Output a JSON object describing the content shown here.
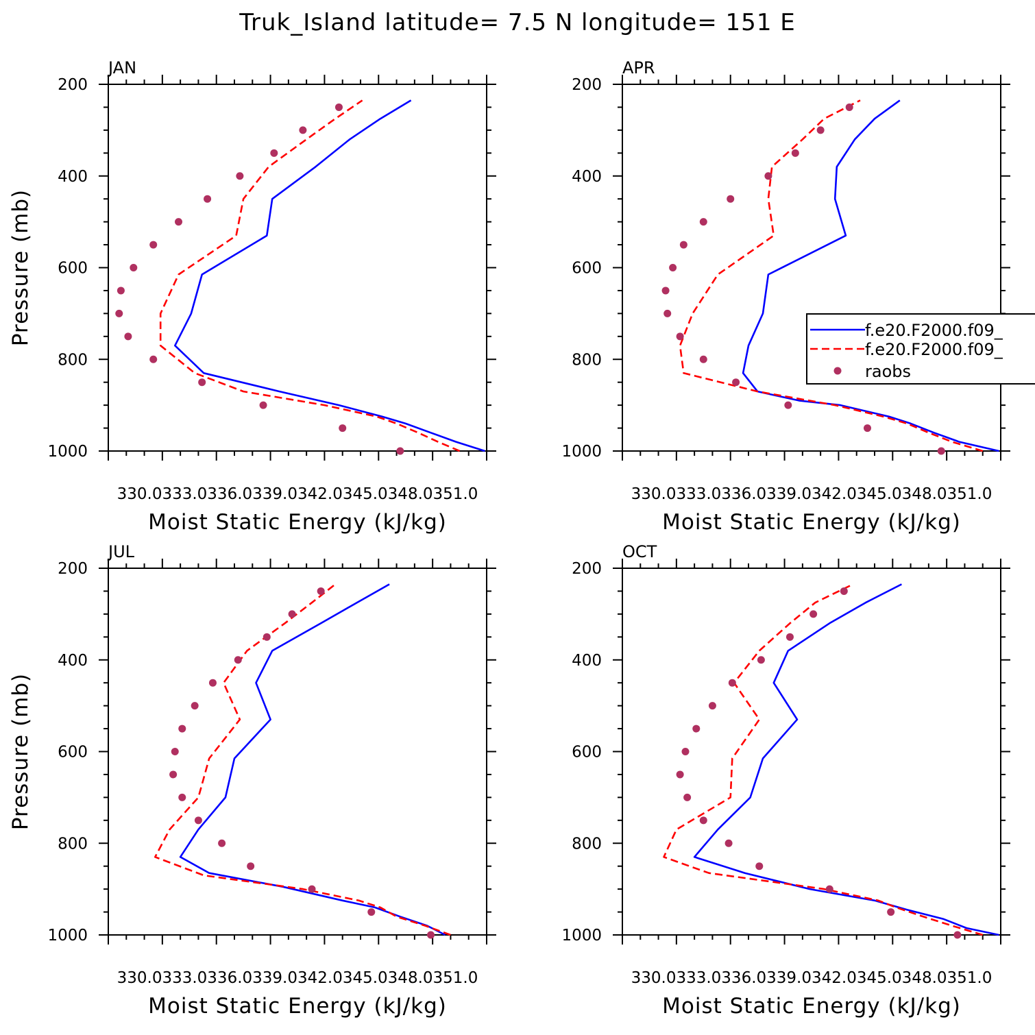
{
  "figure_title": "Truk_Island  latitude= 7.5 N longitude= 151 E",
  "colors": {
    "model_a": "#0000ff",
    "model_b": "#ff0000",
    "raobs": "#b03060"
  },
  "chart_data": [
    {
      "type": "line",
      "panel": "JAN",
      "xlabel": "Moist Static Energy (kJ/kg)",
      "ylabel": "Pressure (mb)",
      "xlim": [
        330,
        351
      ],
      "ylim": [
        1000,
        200
      ],
      "x_tick_labels": [
        "330.0",
        "333.0",
        "336.0",
        "339.0",
        "342.0",
        "345.0",
        "348.0",
        "351.0"
      ],
      "x_tick_label_text": "330.0333.0336.0339.0342.0345.0348.0351.0",
      "y_ticks": [
        200,
        400,
        600,
        800,
        1000
      ],
      "series": [
        {
          "name": "f.e20.F2000.f09_",
          "style": "solid",
          "pressure": [
            1000,
            980,
            960,
            940,
            925,
            900,
            870,
            830,
            770,
            700,
            615,
            530,
            450,
            380,
            320,
            275,
            235
          ],
          "values": [
            350.9,
            349.3,
            347.9,
            346.5,
            345.2,
            342.8,
            339.5,
            335.3,
            333.7,
            334.6,
            335.2,
            338.8,
            339.1,
            341.5,
            343.4,
            345.1,
            346.8
          ]
        },
        {
          "name": "f.e20.F2000.f09_",
          "style": "dashed",
          "pressure": [
            1000,
            980,
            960,
            940,
            925,
            900,
            870,
            830,
            770,
            700,
            615,
            530,
            450,
            380,
            320,
            275,
            235
          ],
          "values": [
            349.5,
            348.3,
            347.2,
            346.0,
            344.9,
            342.0,
            337.5,
            334.8,
            332.9,
            332.9,
            333.9,
            337.1,
            337.5,
            338.9,
            341.0,
            342.6,
            344.1
          ]
        },
        {
          "name": "raobs",
          "style": "markers",
          "pressure": [
            1000,
            950,
            900,
            850,
            800,
            750,
            700,
            650,
            600,
            550,
            500,
            450,
            400,
            350,
            300,
            250
          ],
          "values": [
            346.2,
            343.0,
            338.6,
            335.2,
            332.5,
            331.1,
            330.6,
            330.7,
            331.4,
            332.5,
            333.9,
            335.5,
            337.3,
            339.2,
            340.8,
            342.8
          ]
        }
      ]
    },
    {
      "type": "line",
      "panel": "APR",
      "xlabel": "Moist Static Energy (kJ/kg)",
      "ylabel": "",
      "xlim": [
        330,
        351
      ],
      "ylim": [
        1000,
        200
      ],
      "x_tick_labels": [
        "330.0",
        "333.0",
        "336.0",
        "339.0",
        "342.0",
        "345.0",
        "348.0",
        "351.0"
      ],
      "x_tick_label_text": "330.0333.0336.0339.0342.0345.0348.0351.0",
      "y_ticks": [
        200,
        400,
        600,
        800,
        1000
      ],
      "series": [
        {
          "name": "f.e20.F2000.f09_",
          "style": "solid",
          "pressure": [
            1000,
            980,
            960,
            940,
            925,
            900,
            890,
            870,
            830,
            770,
            700,
            615,
            530,
            450,
            380,
            320,
            275,
            235
          ],
          "values": [
            350.9,
            348.7,
            347.3,
            346.0,
            344.8,
            342.1,
            339.8,
            337.5,
            336.7,
            337.0,
            337.8,
            338.1,
            342.4,
            341.8,
            341.9,
            342.9,
            344.0,
            345.4
          ]
        },
        {
          "name": "f.e20.F2000.f09_",
          "style": "dashed",
          "pressure": [
            1000,
            980,
            960,
            940,
            925,
            900,
            870,
            830,
            770,
            700,
            615,
            530,
            450,
            380,
            320,
            275,
            235
          ],
          "values": [
            350.0,
            348.3,
            347.0,
            345.8,
            344.5,
            341.8,
            337.5,
            333.4,
            333.2,
            333.9,
            335.3,
            338.4,
            338.1,
            338.3,
            340.0,
            341.2,
            343.2
          ]
        },
        {
          "name": "raobs",
          "style": "markers",
          "pressure": [
            1000,
            950,
            900,
            850,
            800,
            750,
            700,
            650,
            600,
            550,
            500,
            450,
            400,
            350,
            300,
            250
          ],
          "values": [
            347.7,
            343.6,
            339.2,
            336.3,
            334.5,
            333.2,
            332.5,
            332.4,
            332.8,
            333.4,
            334.5,
            336.0,
            338.1,
            339.6,
            341.0,
            342.6
          ]
        }
      ]
    },
    {
      "type": "line",
      "panel": "JUL",
      "xlabel": "Moist Static Energy (kJ/kg)",
      "ylabel": "Pressure (mb)",
      "xlim": [
        330,
        351
      ],
      "ylim": [
        1000,
        200
      ],
      "x_tick_labels": [
        "330.0",
        "333.0",
        "336.0",
        "339.0",
        "342.0",
        "345.0",
        "348.0",
        "351.0"
      ],
      "x_tick_label_text": "330.0333.0336.0339.0342.0345.0348.0351.0",
      "y_ticks": [
        200,
        400,
        600,
        800,
        1000
      ],
      "series": [
        {
          "name": "f.e20.F2000.f09_",
          "style": "solid",
          "pressure": [
            1000,
            980,
            960,
            940,
            925,
            895,
            865,
            830,
            770,
            700,
            615,
            530,
            450,
            380,
            320,
            275,
            235
          ],
          "values": [
            348.7,
            347.7,
            346.2,
            344.8,
            343.0,
            339.7,
            335.6,
            334.0,
            335.0,
            336.5,
            337.0,
            339.0,
            338.2,
            339.1,
            341.8,
            343.8,
            345.6
          ]
        },
        {
          "name": "f.e20.F2000.f09_",
          "style": "dashed",
          "pressure": [
            1000,
            980,
            960,
            940,
            925,
            900,
            870,
            830,
            770,
            700,
            615,
            530,
            450,
            380,
            320,
            275,
            235
          ],
          "values": [
            349.0,
            347.6,
            346.0,
            345.1,
            343.9,
            340.8,
            335.3,
            332.6,
            333.4,
            335.0,
            335.6,
            337.3,
            336.4,
            337.7,
            339.8,
            341.3,
            342.6
          ]
        },
        {
          "name": "raobs",
          "style": "markers",
          "pressure": [
            1000,
            950,
            900,
            850,
            800,
            750,
            700,
            650,
            600,
            550,
            500,
            450,
            400,
            350,
            300,
            250
          ],
          "values": [
            347.9,
            344.6,
            341.3,
            337.9,
            336.3,
            335.0,
            334.1,
            333.6,
            333.7,
            334.1,
            334.8,
            335.8,
            337.2,
            338.8,
            340.2,
            341.8
          ]
        }
      ]
    },
    {
      "type": "line",
      "panel": "OCT",
      "xlabel": "Moist Static Energy (kJ/kg)",
      "ylabel": "",
      "xlim": [
        330,
        351
      ],
      "ylim": [
        1000,
        200
      ],
      "x_tick_labels": [
        "330.0",
        "333.0",
        "336.0",
        "339.0",
        "342.0",
        "345.0",
        "348.0",
        "351.0"
      ],
      "x_tick_label_text": "330.0333.0336.0339.0342.0345.0348.0351.0",
      "y_ticks": [
        200,
        400,
        600,
        800,
        1000
      ],
      "series": [
        {
          "name": "f.e20.F2000.f09_",
          "style": "solid",
          "pressure": [
            1000,
            985,
            965,
            945,
            925,
            900,
            865,
            830,
            770,
            700,
            615,
            530,
            450,
            380,
            320,
            275,
            235
          ],
          "values": [
            350.9,
            349.1,
            347.8,
            345.8,
            344.0,
            340.4,
            336.8,
            334.0,
            335.3,
            337.1,
            337.8,
            339.7,
            338.4,
            339.2,
            341.5,
            343.5,
            345.5
          ]
        },
        {
          "name": "f.e20.F2000.f09_",
          "style": "dashed",
          "pressure": [
            1000,
            980,
            960,
            940,
            925,
            900,
            865,
            830,
            770,
            700,
            615,
            530,
            450,
            380,
            320,
            275,
            235
          ],
          "values": [
            350.0,
            348.3,
            346.7,
            345.2,
            344.2,
            341.2,
            334.8,
            332.3,
            333.0,
            336.0,
            336.1,
            337.6,
            336.2,
            337.6,
            339.3,
            340.7,
            342.8
          ]
        },
        {
          "name": "raobs",
          "style": "markers",
          "pressure": [
            1000,
            950,
            900,
            850,
            800,
            750,
            700,
            650,
            600,
            550,
            500,
            450,
            400,
            350,
            300,
            250
          ],
          "values": [
            348.6,
            344.9,
            341.5,
            337.6,
            335.9,
            334.5,
            333.6,
            333.2,
            333.5,
            334.1,
            335.0,
            336.1,
            337.7,
            339.3,
            340.6,
            342.3
          ]
        }
      ]
    }
  ],
  "legend": {
    "entries": [
      "f.e20.F2000.f09_",
      "f.e20.F2000.f09_",
      "raobs"
    ],
    "placement": "right of APR panel"
  }
}
